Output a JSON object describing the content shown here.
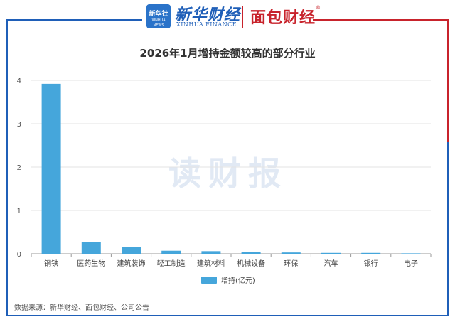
{
  "header": {
    "xinhua_logo_cn": "新华社",
    "xinhua_logo_en": "XINHUA NEWS",
    "xinhua_finance_cn": "新华财经",
    "xinhua_finance_en": "XINHUA FINANCE",
    "mianbao_logo": "面包财经",
    "mianbao_reg": "®"
  },
  "watermark": "读财报",
  "source": "数据来源：新华财经、面包财经、公司公告",
  "colors": {
    "bar": "#45a6db",
    "header_blue": "#1f5fb8",
    "header_red": "#c8232c"
  },
  "chart_data": {
    "type": "bar",
    "title": "2026年1月增持金额较高的部分行业",
    "categories": [
      "钢铁",
      "医药生物",
      "建筑装饰",
      "轻工制造",
      "建筑材料",
      "机械设备",
      "环保",
      "汽车",
      "银行",
      "电子"
    ],
    "series": [
      {
        "name": "增持(亿元)",
        "values": [
          3.92,
          0.27,
          0.16,
          0.07,
          0.06,
          0.04,
          0.03,
          0.02,
          0.02,
          0.01
        ]
      }
    ],
    "xlabel": "",
    "ylabel": "",
    "ylim": [
      0,
      4
    ],
    "yticks": [
      "0",
      "1",
      "2",
      "3",
      "4"
    ],
    "grid": true,
    "legend_position": "bottom"
  }
}
